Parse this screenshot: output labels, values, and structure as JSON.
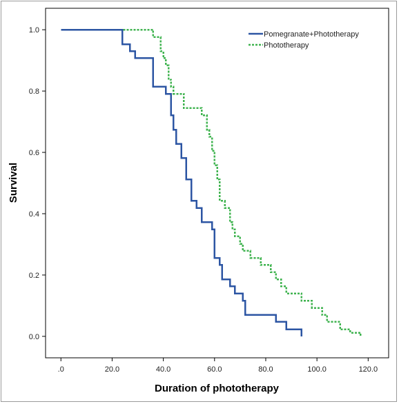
{
  "chart_data": {
    "type": "line",
    "step": true,
    "xlabel": "Duration of phototherapy",
    "ylabel": "Survival",
    "xlim": [
      -6,
      128
    ],
    "ylim": [
      -0.07,
      1.07
    ],
    "x_ticks": [
      0,
      20,
      40,
      60,
      80,
      100,
      120
    ],
    "x_tick_labels": [
      ".0",
      "20.0",
      "40.0",
      "60.0",
      "80.0",
      "100.0",
      "120.0"
    ],
    "y_ticks": [
      0,
      0.2,
      0.4,
      0.6,
      0.8,
      1.0
    ],
    "y_tick_labels": [
      "0.0",
      "0.2",
      "0.4",
      "0.6",
      "0.8",
      "1.0"
    ],
    "grid": false,
    "legend_position": "top-right",
    "series": [
      {
        "name": "Pomegranate+Phototherapy",
        "color": "#2c55a3",
        "dash": "solid",
        "x": [
          0,
          24,
          27,
          29,
          36,
          41,
          43,
          44,
          45,
          47,
          49,
          51,
          53,
          55,
          59,
          60,
          62,
          63,
          66,
          68,
          71,
          72,
          84,
          88,
          94
        ],
        "y": [
          1.0,
          0.953,
          0.93,
          0.907,
          0.814,
          0.791,
          0.721,
          0.674,
          0.628,
          0.581,
          0.512,
          0.442,
          0.419,
          0.372,
          0.349,
          0.256,
          0.233,
          0.186,
          0.163,
          0.14,
          0.116,
          0.07,
          0.047,
          0.023,
          0.0
        ]
      },
      {
        "name": "Phototherapy",
        "color": "#3fb34f",
        "dash": "dotted",
        "x": [
          0,
          36,
          39,
          40,
          41,
          42,
          43,
          44,
          48,
          55,
          57,
          58,
          59,
          60,
          61,
          62,
          64,
          66,
          67,
          68,
          70,
          71,
          74,
          78,
          82,
          84,
          86,
          88,
          94,
          98,
          102,
          104,
          109,
          113,
          117
        ],
        "y": [
          1.0,
          0.976,
          0.93,
          0.907,
          0.884,
          0.837,
          0.814,
          0.791,
          0.744,
          0.721,
          0.674,
          0.651,
          0.605,
          0.558,
          0.512,
          0.442,
          0.419,
          0.372,
          0.349,
          0.326,
          0.302,
          0.279,
          0.256,
          0.233,
          0.209,
          0.186,
          0.163,
          0.14,
          0.116,
          0.093,
          0.07,
          0.047,
          0.023,
          0.012,
          0.0
        ]
      }
    ]
  }
}
